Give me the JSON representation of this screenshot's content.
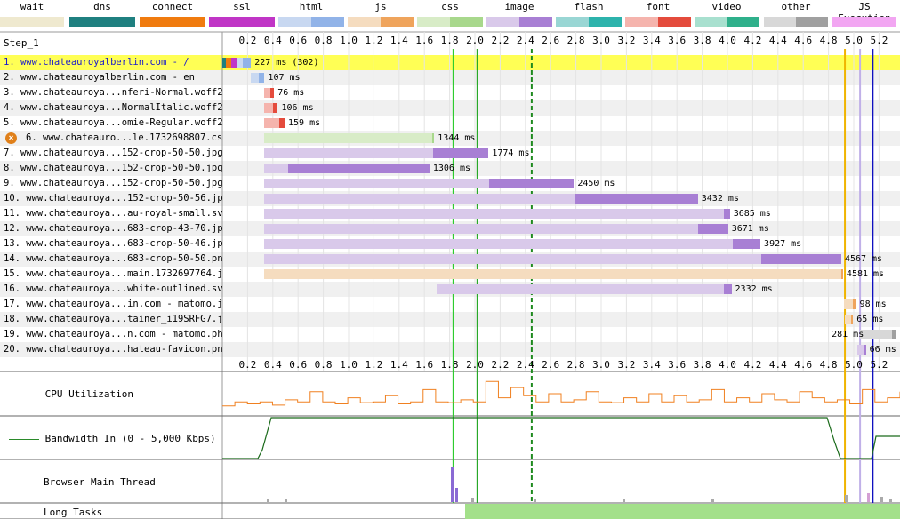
{
  "legend": [
    {
      "label": "wait",
      "color": "#efe9cf",
      "color2": null
    },
    {
      "label": "dns",
      "color": "#1f8080",
      "color2": null
    },
    {
      "label": "connect",
      "color": "#f07b0e",
      "color2": null
    },
    {
      "label": "ssl",
      "color": "#c035c6",
      "color2": null
    },
    {
      "label": "html",
      "color": "#c8d8f1",
      "color2": "#91b3e8"
    },
    {
      "label": "js",
      "color": "#f5dcbf",
      "color2": "#efa45c"
    },
    {
      "label": "css",
      "color": "#d8ecc7",
      "color2": "#a8d88c"
    },
    {
      "label": "image",
      "color": "#d9c9ea",
      "color2": "#a87fd4"
    },
    {
      "label": "flash",
      "color": "#99d6d4",
      "color2": "#2db3ac"
    },
    {
      "label": "font",
      "color": "#f5b4ad",
      "color2": "#e44b3c"
    },
    {
      "label": "video",
      "color": "#a8e0cf",
      "color2": "#2fb08b"
    },
    {
      "label": "other",
      "color": "#d8d8d8",
      "color2": "#a0a0a0"
    },
    {
      "label": "JS Execution",
      "color": "#f2a6f2",
      "color2": null
    }
  ],
  "step_label": "Step_1",
  "ticks": [
    "0.2",
    "0.4",
    "0.6",
    "0.8",
    "1.0",
    "1.2",
    "1.4",
    "1.6",
    "1.8",
    "2.0",
    "2.2",
    "2.4",
    "2.6",
    "2.8",
    "3.0",
    "3.2",
    "3.4",
    "3.6",
    "3.8",
    "4.0",
    "4.2",
    "4.4",
    "4.6",
    "4.8",
    "5.0",
    "5.2"
  ],
  "requests": [
    {
      "label": "1. www.chateauroyalberlin.com - /",
      "start": 0.0,
      "ttfb": 0.16,
      "end": 0.227,
      "ms": "227 ms (302)",
      "type": "html",
      "highlight": true,
      "error": false
    },
    {
      "label": "2. www.chateauroyalberlin.com - en",
      "start": 0.227,
      "ttfb": 0.29,
      "end": 0.334,
      "ms": "107 ms",
      "type": "html",
      "highlight": false,
      "error": false
    },
    {
      "label": "3. www.chateauroya...nferi-Normal.woff2",
      "start": 0.334,
      "ttfb": 0.38,
      "end": 0.41,
      "ms": "76 ms",
      "type": "font",
      "highlight": false,
      "error": false
    },
    {
      "label": "4. www.chateauroya...NormalItalic.woff2",
      "start": 0.334,
      "ttfb": 0.4,
      "end": 0.44,
      "ms": "106 ms",
      "type": "font",
      "highlight": false,
      "error": false
    },
    {
      "label": "5. www.chateauroya...omie-Regular.woff2",
      "start": 0.334,
      "ttfb": 0.45,
      "end": 0.493,
      "ms": "159 ms",
      "type": "font",
      "highlight": false,
      "error": false
    },
    {
      "label": "6. www.chateauro...le.1732698807.css",
      "start": 0.334,
      "ttfb": 1.66,
      "end": 1.678,
      "ms": "1344 ms",
      "type": "css",
      "highlight": false,
      "error": true
    },
    {
      "label": "7. www.chateauroya...152-crop-50-50.jpg",
      "start": 0.334,
      "ttfb": 1.67,
      "end": 2.108,
      "ms": "1774 ms",
      "type": "image",
      "highlight": false,
      "error": false
    },
    {
      "label": "8. www.chateauroya...152-crop-50-50.jpg",
      "start": 0.334,
      "ttfb": 0.52,
      "end": 1.64,
      "ms": "1306 ms",
      "type": "image",
      "highlight": false,
      "error": false
    },
    {
      "label": "9. www.chateauroya...152-crop-50-50.jpg",
      "start": 0.334,
      "ttfb": 2.11,
      "end": 2.784,
      "ms": "2450 ms",
      "type": "image",
      "highlight": false,
      "error": false
    },
    {
      "label": "10. www.chateauroya...152-crop-50-56.jpg",
      "start": 0.334,
      "ttfb": 2.79,
      "end": 3.766,
      "ms": "3432 ms",
      "type": "image",
      "highlight": false,
      "error": false
    },
    {
      "label": "11. www.chateauroya...au-royal-small.svg",
      "start": 0.334,
      "ttfb": 3.97,
      "end": 4.019,
      "ms": "3685 ms",
      "type": "image",
      "highlight": false,
      "error": false
    },
    {
      "label": "12. www.chateauroya...683-crop-43-70.jpg",
      "start": 0.334,
      "ttfb": 3.77,
      "end": 4.005,
      "ms": "3671 ms",
      "type": "image",
      "highlight": false,
      "error": false
    },
    {
      "label": "13. www.chateauroya...683-crop-50-46.jpg",
      "start": 0.334,
      "ttfb": 4.04,
      "end": 4.261,
      "ms": "3927 ms",
      "type": "image",
      "highlight": false,
      "error": false
    },
    {
      "label": "14. www.chateauroya...683-crop-50-50.png",
      "start": 0.334,
      "ttfb": 4.27,
      "end": 4.901,
      "ms": "4567 ms",
      "type": "image",
      "highlight": false,
      "error": false
    },
    {
      "label": "15. www.chateauroya...main.1732697764.js",
      "start": 0.334,
      "ttfb": 4.9,
      "end": 4.915,
      "ms": "4581 ms",
      "type": "js",
      "highlight": false,
      "error": false
    },
    {
      "label": "16. www.chateauroya...white-outlined.svg",
      "start": 1.7,
      "ttfb": 3.97,
      "end": 4.032,
      "ms": "2332 ms",
      "type": "image",
      "highlight": false,
      "error": false
    },
    {
      "label": "17. www.chateauroya...in.com - matomo.js",
      "start": 4.92,
      "ttfb": 4.99,
      "end": 5.018,
      "ms": "98 ms",
      "type": "js",
      "highlight": false,
      "error": false
    },
    {
      "label": "18. www.chateauroya...tainer_i19SRFG7.js",
      "start": 4.93,
      "ttfb": 4.98,
      "end": 4.995,
      "ms": "65 ms",
      "type": "js",
      "highlight": false,
      "error": false
    },
    {
      "label": "19. www.chateauroya...n.com - matomo.php",
      "start": 5.05,
      "ttfb": 5.3,
      "end": 5.331,
      "ms": "281 ms",
      "type": "other",
      "highlight": false,
      "error": false
    },
    {
      "label": "20. www.chateauroya...hateau-favicon.png",
      "start": 5.03,
      "ttfb": 5.08,
      "end": 5.096,
      "ms": "66 ms",
      "type": "image",
      "highlight": false,
      "error": false
    }
  ],
  "markers": [
    {
      "time": 1.83,
      "color": "#2ecc2e",
      "style": "solid"
    },
    {
      "time": 2.02,
      "color": "#28a828",
      "style": "solid"
    },
    {
      "time": 2.45,
      "color": "#1f8a1f",
      "style": "dashed"
    },
    {
      "time": 4.93,
      "color": "#f0b400",
      "style": "solid"
    },
    {
      "time": 5.05,
      "color": "#c0b0e8",
      "style": "solid"
    },
    {
      "time": 5.15,
      "color": "#1010c0",
      "style": "solid"
    }
  ],
  "panels": {
    "cpu": "CPU Utilization",
    "bandwidth": "Bandwidth In (0 - 5,000 Kbps)",
    "main_thread": "Browser Main Thread",
    "long_tasks": "Long Tasks"
  }
}
